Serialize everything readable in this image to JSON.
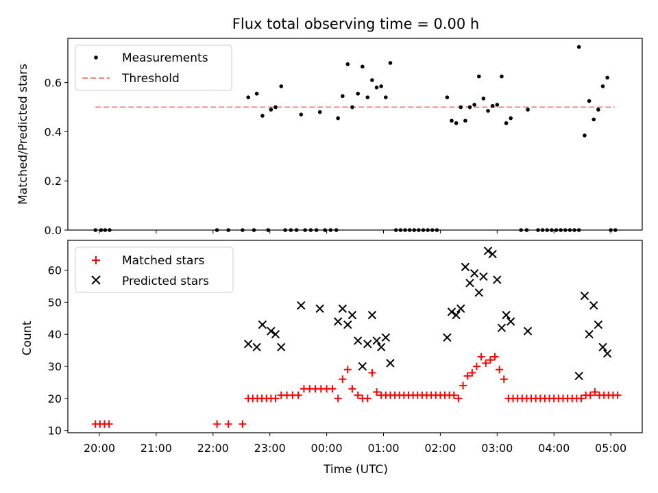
{
  "title": "Flux total observing time = 0.00 h",
  "xlabel": "Time (UTC)",
  "x_tick_labels": [
    "20:00",
    "21:00",
    "22:00",
    "23:00",
    "00:00",
    "01:00",
    "02:00",
    "03:00",
    "04:00",
    "05:00"
  ],
  "chart_data": [
    {
      "type": "scatter",
      "ylabel": "Matched/Predicted stars",
      "x_unit": "hours after 20:00 UTC",
      "ylim": [
        0,
        0.78
      ],
      "y_ticks": [
        0.0,
        0.2,
        0.4,
        0.6
      ],
      "y_tick_labels": [
        "0.0",
        "0.2",
        "0.4",
        "0.6"
      ],
      "legend_position": "top-left",
      "threshold": {
        "name": "Threshold",
        "value": 0.5,
        "x_range": [
          -0.07,
          9.07
        ],
        "color": "#ff7f7f"
      },
      "series": [
        {
          "name": "Measurements",
          "color": "#000000",
          "points": [
            [
              -0.07,
              0
            ],
            [
              0.03,
              0
            ],
            [
              0.1,
              0
            ],
            [
              0.18,
              0
            ],
            [
              2.07,
              0
            ],
            [
              2.27,
              0
            ],
            [
              2.52,
              0
            ],
            [
              2.72,
              0
            ],
            [
              2.97,
              0
            ],
            [
              3.27,
              0
            ],
            [
              3.37,
              0
            ],
            [
              3.47,
              0
            ],
            [
              3.62,
              0
            ],
            [
              3.72,
              0
            ],
            [
              3.82,
              0
            ],
            [
              3.97,
              0
            ],
            [
              4.07,
              0
            ],
            [
              4.17,
              0
            ],
            [
              5.22,
              0
            ],
            [
              5.3,
              0
            ],
            [
              5.38,
              0
            ],
            [
              5.46,
              0
            ],
            [
              5.54,
              0
            ],
            [
              5.62,
              0
            ],
            [
              5.7,
              0
            ],
            [
              5.78,
              0
            ],
            [
              5.86,
              0
            ],
            [
              5.94,
              0
            ],
            [
              7.42,
              0
            ],
            [
              7.52,
              0
            ],
            [
              7.72,
              0
            ],
            [
              7.8,
              0
            ],
            [
              7.88,
              0
            ],
            [
              7.96,
              0
            ],
            [
              8.04,
              0
            ],
            [
              8.12,
              0
            ],
            [
              8.2,
              0
            ],
            [
              8.28,
              0
            ],
            [
              8.36,
              0
            ],
            [
              8.44,
              0
            ],
            [
              9.0,
              0
            ],
            [
              9.08,
              0
            ],
            [
              2.62,
              0.54
            ],
            [
              2.77,
              0.555
            ],
            [
              2.87,
              0.465
            ],
            [
              3.02,
              0.49
            ],
            [
              3.1,
              0.5
            ],
            [
              3.2,
              0.585
            ],
            [
              3.55,
              0.47
            ],
            [
              3.88,
              0.48
            ],
            [
              4.2,
              0.455
            ],
            [
              4.28,
              0.545
            ],
            [
              4.37,
              0.675
            ],
            [
              4.45,
              0.5
            ],
            [
              4.55,
              0.555
            ],
            [
              4.63,
              0.665
            ],
            [
              4.72,
              0.54
            ],
            [
              4.8,
              0.61
            ],
            [
              4.88,
              0.58
            ],
            [
              4.96,
              0.585
            ],
            [
              5.04,
              0.54
            ],
            [
              5.12,
              0.68
            ],
            [
              6.12,
              0.54
            ],
            [
              6.2,
              0.445
            ],
            [
              6.28,
              0.435
            ],
            [
              6.36,
              0.5
            ],
            [
              6.44,
              0.445
            ],
            [
              6.52,
              0.5
            ],
            [
              6.6,
              0.51
            ],
            [
              6.68,
              0.625
            ],
            [
              6.76,
              0.535
            ],
            [
              6.84,
              0.485
            ],
            [
              6.92,
              0.505
            ],
            [
              7.0,
              0.51
            ],
            [
              7.08,
              0.625
            ],
            [
              7.16,
              0.435
            ],
            [
              7.24,
              0.455
            ],
            [
              7.54,
              0.49
            ],
            [
              8.44,
              0.745
            ],
            [
              8.54,
              0.385
            ],
            [
              8.62,
              0.525
            ],
            [
              8.7,
              0.45
            ],
            [
              8.78,
              0.49
            ],
            [
              8.86,
              0.585
            ],
            [
              8.94,
              0.62
            ]
          ]
        }
      ]
    },
    {
      "type": "scatter",
      "ylabel": "Count",
      "x_unit": "hours after 20:00 UTC",
      "ylim": [
        9.3,
        69.3
      ],
      "y_ticks": [
        10,
        20,
        30,
        40,
        50,
        60
      ],
      "y_tick_labels": [
        "10",
        "20",
        "30",
        "40",
        "50",
        "60"
      ],
      "legend_position": "top-left",
      "series": [
        {
          "name": "Matched stars",
          "marker": "plus",
          "color": "#ff0000",
          "points": [
            [
              -0.07,
              12
            ],
            [
              0.01,
              12
            ],
            [
              0.09,
              12
            ],
            [
              0.17,
              12
            ],
            [
              2.07,
              12
            ],
            [
              2.27,
              12
            ],
            [
              2.52,
              12
            ],
            [
              2.62,
              20
            ],
            [
              2.7,
              20
            ],
            [
              2.78,
              20
            ],
            [
              2.86,
              20
            ],
            [
              2.94,
              20
            ],
            [
              3.02,
              20
            ],
            [
              3.1,
              20
            ],
            [
              3.2,
              21
            ],
            [
              3.3,
              21
            ],
            [
              3.4,
              21
            ],
            [
              3.5,
              21
            ],
            [
              3.6,
              23
            ],
            [
              3.7,
              23
            ],
            [
              3.8,
              23
            ],
            [
              3.9,
              23
            ],
            [
              4.0,
              23
            ],
            [
              4.1,
              23
            ],
            [
              4.2,
              20
            ],
            [
              4.28,
              26
            ],
            [
              4.37,
              29
            ],
            [
              4.45,
              23
            ],
            [
              4.55,
              21
            ],
            [
              4.63,
              20
            ],
            [
              4.72,
              20
            ],
            [
              4.8,
              28
            ],
            [
              4.88,
              22
            ],
            [
              4.96,
              21
            ],
            [
              5.04,
              21
            ],
            [
              5.12,
              21
            ],
            [
              5.2,
              21
            ],
            [
              5.28,
              21
            ],
            [
              5.36,
              21
            ],
            [
              5.44,
              21
            ],
            [
              5.52,
              21
            ],
            [
              5.6,
              21
            ],
            [
              5.68,
              21
            ],
            [
              5.76,
              21
            ],
            [
              5.84,
              21
            ],
            [
              5.92,
              21
            ],
            [
              6.0,
              21
            ],
            [
              6.08,
              21
            ],
            [
              6.16,
              21
            ],
            [
              6.24,
              21
            ],
            [
              6.32,
              20
            ],
            [
              6.4,
              24
            ],
            [
              6.48,
              27
            ],
            [
              6.56,
              28
            ],
            [
              6.64,
              30
            ],
            [
              6.72,
              33
            ],
            [
              6.8,
              31
            ],
            [
              6.88,
              32
            ],
            [
              6.96,
              33
            ],
            [
              7.04,
              29
            ],
            [
              7.12,
              26
            ],
            [
              7.2,
              20
            ],
            [
              7.28,
              20
            ],
            [
              7.36,
              20
            ],
            [
              7.44,
              20
            ],
            [
              7.52,
              20
            ],
            [
              7.6,
              20
            ],
            [
              7.68,
              20
            ],
            [
              7.76,
              20
            ],
            [
              7.84,
              20
            ],
            [
              7.92,
              20
            ],
            [
              8.0,
              20
            ],
            [
              8.08,
              20
            ],
            [
              8.16,
              20
            ],
            [
              8.24,
              20
            ],
            [
              8.32,
              20
            ],
            [
              8.4,
              20
            ],
            [
              8.48,
              20
            ],
            [
              8.56,
              21
            ],
            [
              8.64,
              21
            ],
            [
              8.72,
              22
            ],
            [
              8.8,
              21
            ],
            [
              8.88,
              21
            ],
            [
              8.96,
              21
            ],
            [
              9.04,
              21
            ],
            [
              9.12,
              21
            ]
          ]
        },
        {
          "name": "Predicted stars",
          "marker": "x",
          "color": "#000000",
          "points": [
            [
              2.62,
              37
            ],
            [
              2.77,
              36
            ],
            [
              2.87,
              43
            ],
            [
              3.02,
              41
            ],
            [
              3.1,
              40
            ],
            [
              3.2,
              36
            ],
            [
              3.55,
              49
            ],
            [
              3.88,
              48
            ],
            [
              4.2,
              44
            ],
            [
              4.28,
              48
            ],
            [
              4.37,
              43
            ],
            [
              4.45,
              46
            ],
            [
              4.55,
              38
            ],
            [
              4.63,
              30
            ],
            [
              4.72,
              37
            ],
            [
              4.8,
              46
            ],
            [
              4.88,
              38
            ],
            [
              4.96,
              36
            ],
            [
              5.04,
              39
            ],
            [
              5.12,
              31
            ],
            [
              6.12,
              39
            ],
            [
              6.2,
              47
            ],
            [
              6.28,
              46
            ],
            [
              6.36,
              48
            ],
            [
              6.44,
              61
            ],
            [
              6.52,
              56
            ],
            [
              6.6,
              59
            ],
            [
              6.68,
              53
            ],
            [
              6.76,
              58
            ],
            [
              6.84,
              66
            ],
            [
              6.92,
              65
            ],
            [
              7.0,
              57
            ],
            [
              7.08,
              42
            ],
            [
              7.16,
              46
            ],
            [
              7.24,
              44
            ],
            [
              7.54,
              41
            ],
            [
              8.44,
              27
            ],
            [
              8.54,
              52
            ],
            [
              8.62,
              40
            ],
            [
              8.7,
              49
            ],
            [
              8.78,
              43
            ],
            [
              8.86,
              36
            ],
            [
              8.94,
              34
            ]
          ]
        }
      ]
    }
  ]
}
